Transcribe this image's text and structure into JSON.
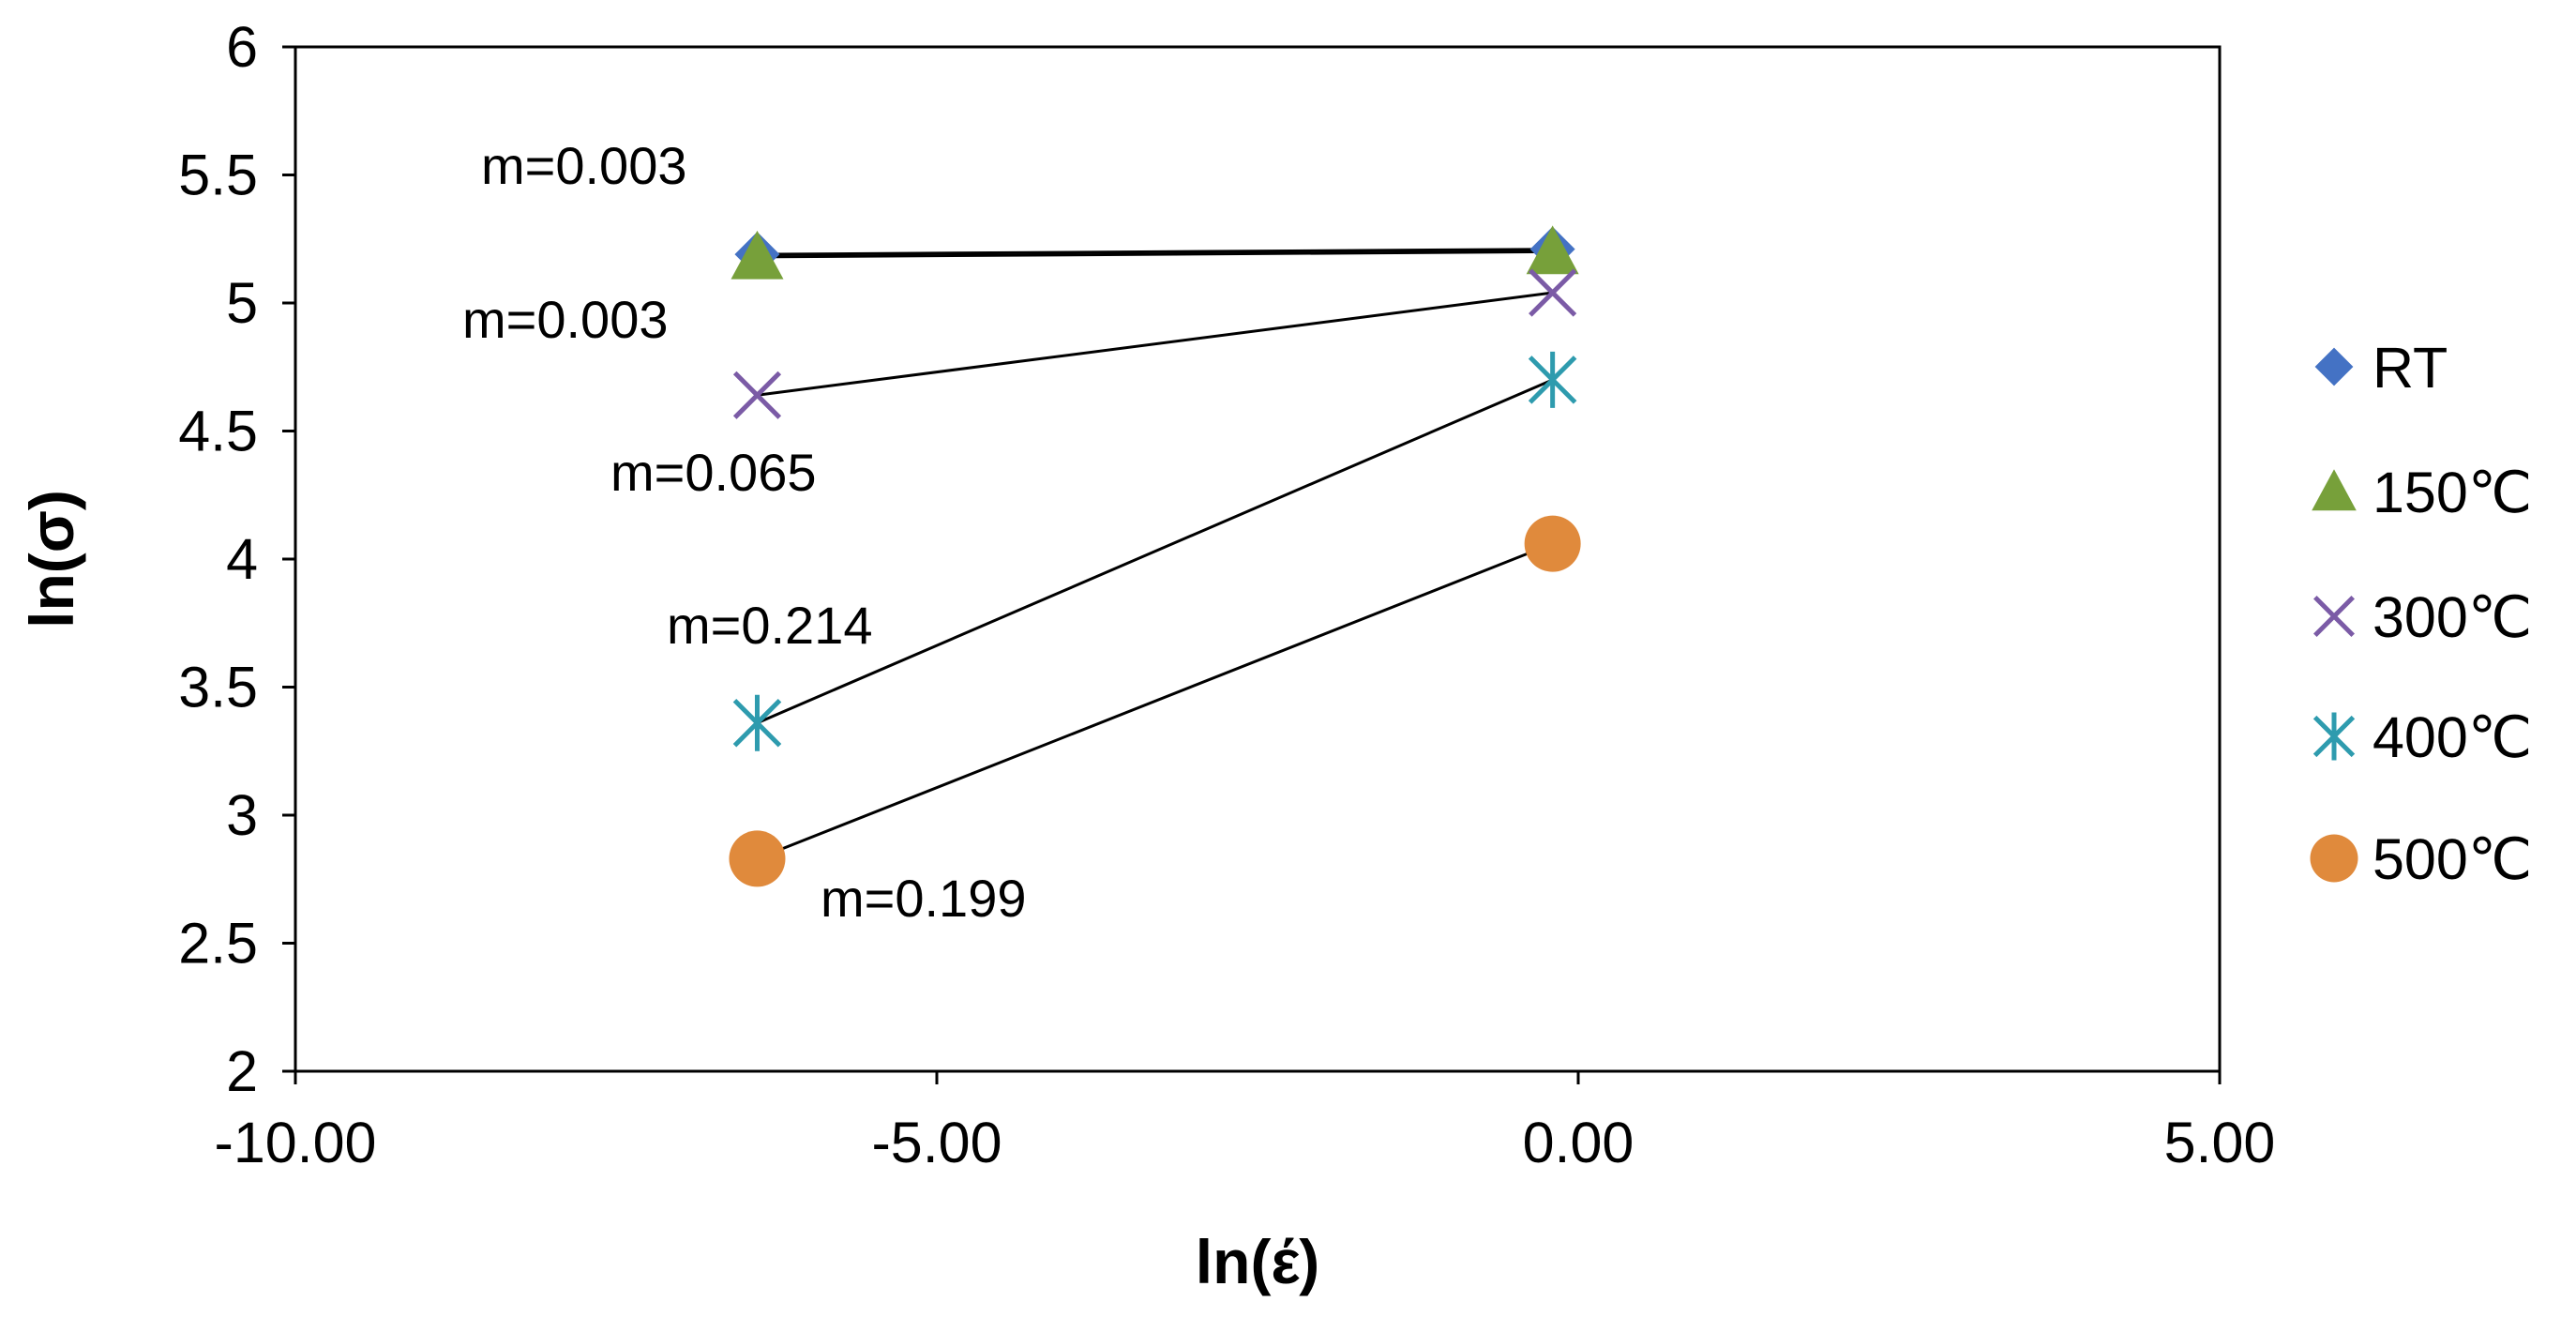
{
  "chart_data": {
    "type": "scatter",
    "title": "",
    "xlabel": "ln(έ)",
    "ylabel": "ln(σ)",
    "xlim": [
      -10,
      5
    ],
    "ylim": [
      2,
      6
    ],
    "xticks": [
      -10,
      -5,
      0,
      5
    ],
    "xtick_labels": [
      "-10.00",
      "-5.00",
      "0.00",
      "5.00"
    ],
    "yticks": [
      2,
      2.5,
      3,
      3.5,
      4,
      4.5,
      5,
      5.5,
      6
    ],
    "ytick_labels": [
      "2",
      "2.5",
      "3",
      "3.5",
      "4",
      "4.5",
      "5",
      "5.5",
      "6"
    ],
    "grid": false,
    "legend_position": "right",
    "series": [
      {
        "name": "RT",
        "marker": "diamond",
        "color": "#4472C4",
        "x": [
          -6.4,
          -0.2
        ],
        "y": [
          5.19,
          5.21
        ],
        "slope_label": "m=0.003"
      },
      {
        "name": "150℃",
        "marker": "triangle",
        "color": "#77A03A",
        "x": [
          -6.4,
          -0.2
        ],
        "y": [
          5.18,
          5.2
        ],
        "slope_label": "m=0.003"
      },
      {
        "name": "300℃",
        "marker": "x",
        "color": "#7B5BA6",
        "x": [
          -6.4,
          -0.2
        ],
        "y": [
          4.64,
          5.04
        ],
        "slope_label": "m=0.065"
      },
      {
        "name": "400℃",
        "marker": "star",
        "color": "#2E9BAE",
        "x": [
          -6.4,
          -0.2
        ],
        "y": [
          3.36,
          4.7
        ],
        "slope_label": "m=0.214"
      },
      {
        "name": "500℃",
        "marker": "circle",
        "color": "#E08A3C",
        "x": [
          -6.4,
          -0.2
        ],
        "y": [
          2.83,
          4.06
        ],
        "slope_label": "m=0.199"
      }
    ]
  }
}
